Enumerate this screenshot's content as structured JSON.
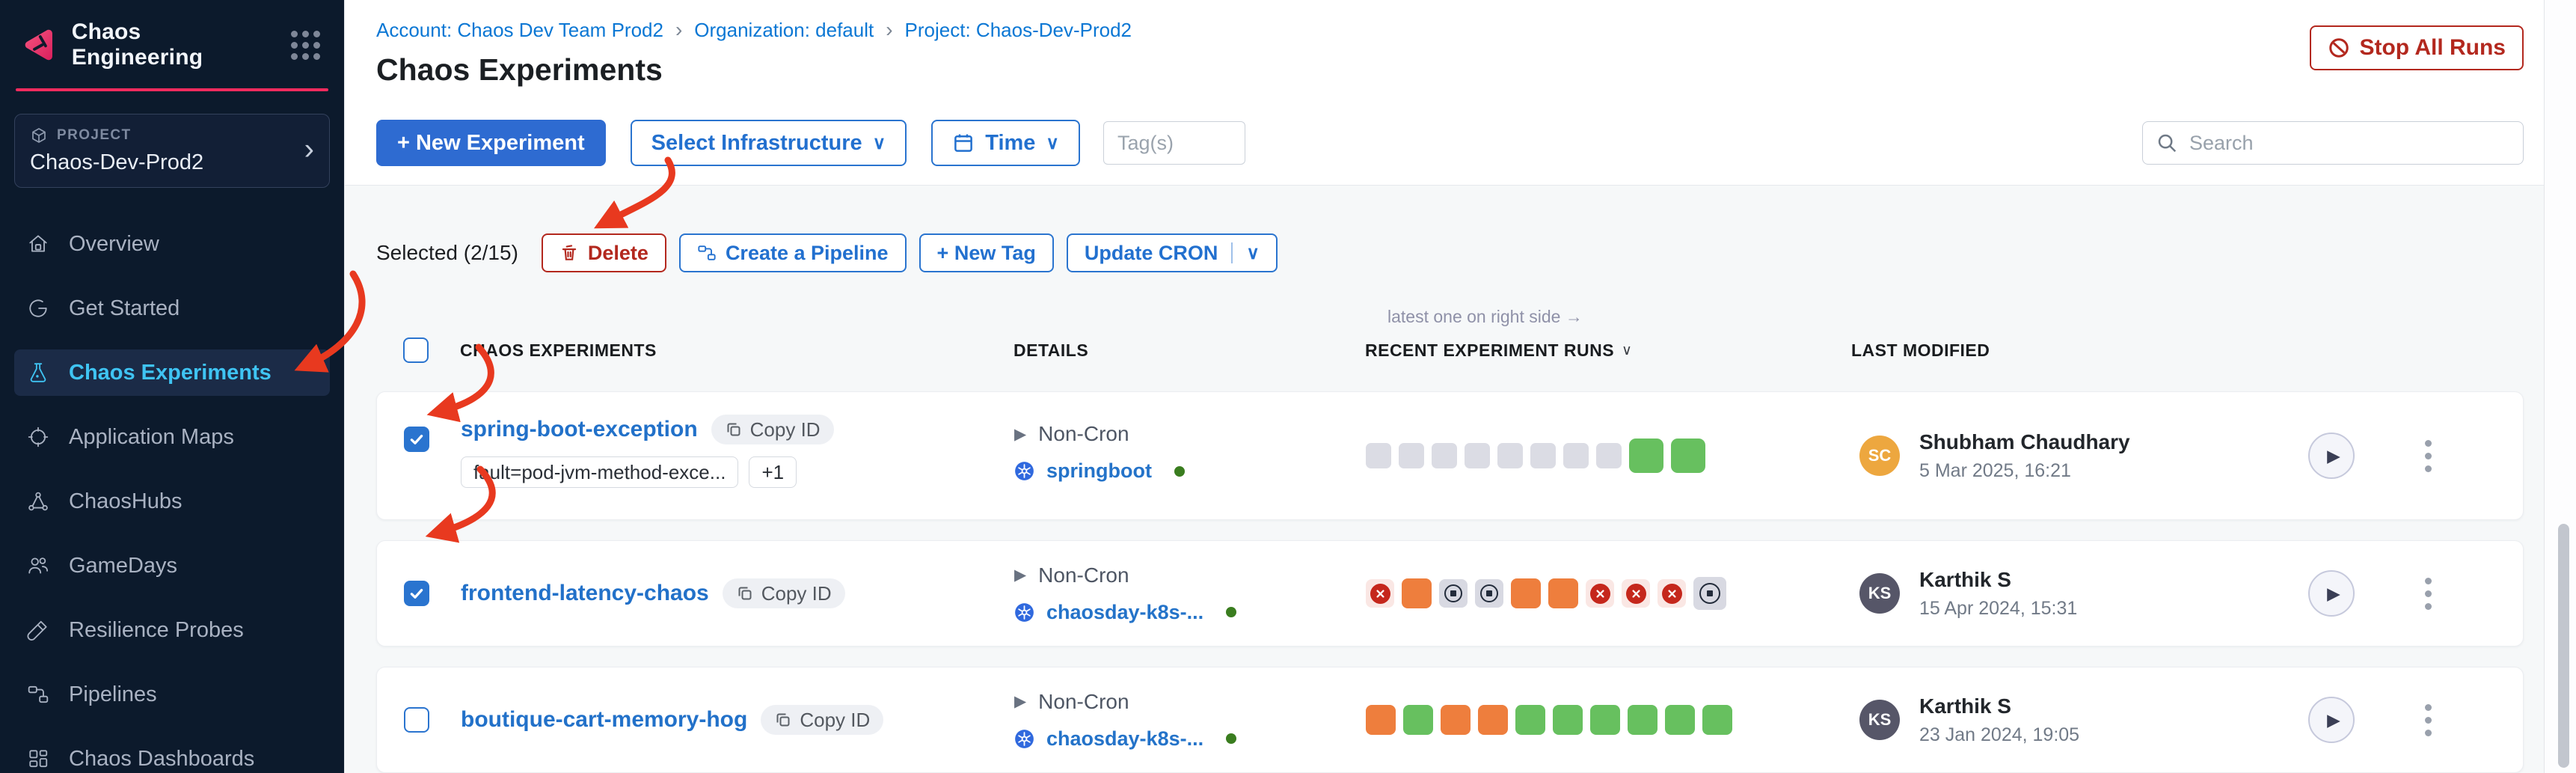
{
  "app": {
    "name": "Chaos Engineering"
  },
  "sidebar": {
    "project_label": "PROJECT",
    "project_name": "Chaos-Dev-Prod2",
    "items": [
      {
        "label": "Overview",
        "icon": "home-icon",
        "active": false
      },
      {
        "label": "Get Started",
        "icon": "get-started-icon",
        "active": false
      },
      {
        "label": "Chaos Experiments",
        "icon": "flask-icon",
        "active": true
      },
      {
        "label": "Application Maps",
        "icon": "target-icon",
        "active": false
      },
      {
        "label": "ChaosHubs",
        "icon": "hub-icon",
        "active": false
      },
      {
        "label": "GameDays",
        "icon": "people-icon",
        "active": false
      },
      {
        "label": "Resilience Probes",
        "icon": "probe-icon",
        "active": false
      },
      {
        "label": "Pipelines",
        "icon": "pipeline-icon",
        "active": false
      },
      {
        "label": "Chaos Dashboards",
        "icon": "dashboard-icon",
        "active": false
      }
    ]
  },
  "breadcrumb": {
    "items": [
      "Account: Chaos Dev Team Prod2",
      "Organization: default",
      "Project: Chaos-Dev-Prod2"
    ],
    "separator": "›"
  },
  "page": {
    "title": "Chaos Experiments"
  },
  "actions": {
    "stop_all_runs": "Stop All Runs",
    "new_experiment": "+ New Experiment",
    "select_infrastructure": "Select Infrastructure",
    "time": "Time",
    "tags_placeholder": "Tag(s)",
    "search_placeholder": "Search"
  },
  "selection": {
    "label": "Selected (2/15)",
    "delete": "Delete",
    "create_pipeline": "Create a Pipeline",
    "new_tag": "+ New Tag",
    "update_cron": "Update CRON"
  },
  "icons": {
    "chevron_down": "∨",
    "play_triangle": "▶",
    "expander_triangle": "▶"
  },
  "table": {
    "runs_note": "latest one on right side →",
    "headers": {
      "experiments": "CHAOS EXPERIMENTS",
      "details": "DETAILS",
      "runs": "RECENT EXPERIMENT RUNS",
      "modified": "LAST MODIFIED"
    },
    "rows": [
      {
        "checked": true,
        "name": "spring-boot-exception",
        "copy_label": "Copy ID",
        "tags": [
          "fault=pod-jvm-method-exce...",
          "+1"
        ],
        "schedule": "Non-Cron",
        "infrastructure": "springboot",
        "runs": [
          "none",
          "none",
          "none",
          "none",
          "none",
          "none",
          "none",
          "none",
          "passed-big",
          "passed-big"
        ],
        "user": {
          "initials": "SC",
          "name": "Shubham Chaudhary",
          "color": "#EDA73F"
        },
        "modified": "5 Mar 2025, 16:21"
      },
      {
        "checked": true,
        "name": "frontend-latency-chaos",
        "copy_label": "Copy ID",
        "tags": [],
        "schedule": "Non-Cron",
        "infrastructure": "chaosday-k8s-...",
        "runs": [
          "failed",
          "running",
          "stopped",
          "stopped",
          "running",
          "running",
          "failed",
          "failed",
          "failed",
          "stopped-big"
        ],
        "user": {
          "initials": "KS",
          "name": "Karthik S",
          "color": "#565668"
        },
        "modified": "15 Apr 2024, 15:31"
      },
      {
        "checked": false,
        "name": "boutique-cart-memory-hog",
        "copy_label": "Copy ID",
        "tags": [],
        "schedule": "Non-Cron",
        "infrastructure": "chaosday-k8s-...",
        "runs": [
          "running",
          "passed",
          "running",
          "running",
          "passed",
          "passed",
          "passed",
          "passed",
          "passed",
          "passed"
        ],
        "user": {
          "initials": "KS",
          "name": "Karthik S",
          "color": "#565668"
        },
        "modified": "23 Jan 2024, 19:05"
      }
    ]
  },
  "colors": {
    "accent_blue": "#0278D5",
    "solid_button_blue": "#2E6BD1",
    "danger_red": "#B3281E",
    "annotation_red": "#E8391F",
    "passed_green": "#67C05F",
    "running_orange": "#EE7E3D",
    "brand_pink": "#F02B5E",
    "active_nav_blue": "#3FC4F3"
  }
}
